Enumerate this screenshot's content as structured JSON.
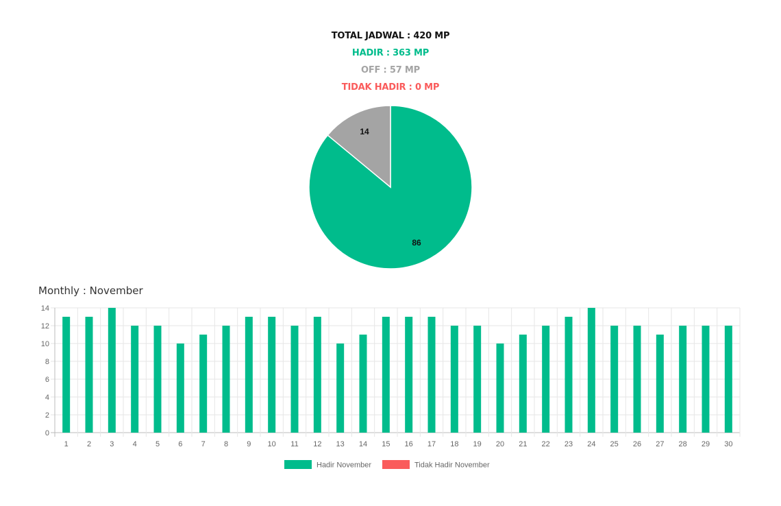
{
  "summary": {
    "total": "TOTAL JADWAL : 420 MP",
    "hadir": "HADIR : 363 MP",
    "off": "OFF : 57 MP",
    "tidak_hadir": "TIDAK HADIR : 0 MP"
  },
  "colors": {
    "total": "#111111",
    "hadir": "#00bc8c",
    "off": "#a4a4a4",
    "tidak_hadir": "#fa5b5b",
    "grid": "#e6e6e6",
    "axis_text": "#666666"
  },
  "monthly_title": "Monthly : November",
  "chart_data": [
    {
      "type": "pie",
      "labels": [
        "HADIR",
        "OFF",
        "TIDAK HADIR"
      ],
      "values": [
        86,
        14,
        0
      ],
      "data_labels": [
        "86",
        "14",
        ""
      ],
      "colors": [
        "#00bc8c",
        "#a4a4a4",
        "#fa5b5b"
      ],
      "start_angle": "12 o'clock",
      "direction": "clockwise"
    },
    {
      "type": "bar",
      "title": "Monthly : November",
      "categories": [
        "1",
        "2",
        "3",
        "4",
        "5",
        "6",
        "7",
        "8",
        "9",
        "10",
        "11",
        "12",
        "13",
        "14",
        "15",
        "16",
        "17",
        "18",
        "19",
        "20",
        "21",
        "22",
        "23",
        "24",
        "25",
        "26",
        "27",
        "28",
        "29",
        "30"
      ],
      "series": [
        {
          "name": "Hadir November",
          "color": "#00bc8c",
          "values": [
            13,
            13,
            14,
            12,
            12,
            10,
            11,
            12,
            13,
            13,
            12,
            13,
            10,
            11,
            13,
            13,
            13,
            12,
            12,
            10,
            11,
            12,
            13,
            14,
            12,
            12,
            11,
            12,
            12,
            12
          ]
        },
        {
          "name": "Tidak Hadir November",
          "color": "#fa5b5b",
          "values": [
            0,
            0,
            0,
            0,
            0,
            0,
            0,
            0,
            0,
            0,
            0,
            0,
            0,
            0,
            0,
            0,
            0,
            0,
            0,
            0,
            0,
            0,
            0,
            0,
            0,
            0,
            0,
            0,
            0,
            0
          ]
        }
      ],
      "ylim": [
        0,
        14
      ],
      "yticks": [
        "0",
        "2",
        "4",
        "6",
        "8",
        "10",
        "12",
        "14"
      ],
      "grid": true,
      "legend_position": "bottom-center"
    }
  ]
}
